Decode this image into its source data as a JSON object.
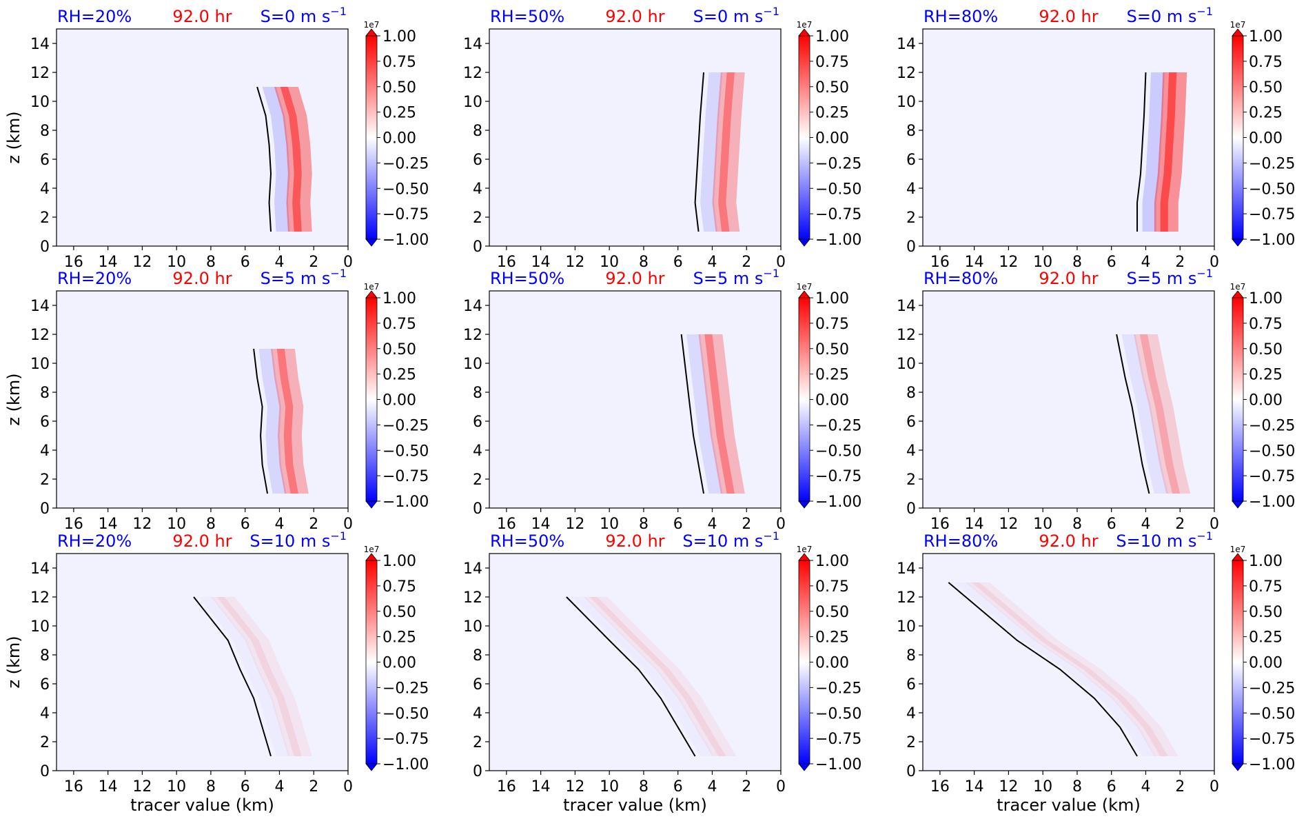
{
  "chart_data": {
    "type": "heatmap",
    "layout": "3x3 grid of contour panels",
    "time_label": "92.0 hr",
    "colors": {
      "rh_label": "#0000ff",
      "time_label": "#ff0000",
      "shear_label": "#0000ff",
      "positive": "#ff0000",
      "negative": "#0000ff",
      "zero": "#f2f2fe",
      "contour": "#000000"
    },
    "shared": {
      "ylabel": "z (km)",
      "xlabel": "tracer value (km)",
      "xlim": [
        17,
        0
      ],
      "ylim": [
        0,
        15
      ],
      "x_ticks": [
        "16",
        "14",
        "12",
        "10",
        "8",
        "6",
        "4",
        "2",
        "0"
      ],
      "y_ticks": [
        "0",
        "2",
        "4",
        "6",
        "8",
        "10",
        "12",
        "14"
      ]
    },
    "colorbar": {
      "exponent_label": "1e7",
      "ticks": [
        "1.00",
        "0.75",
        "0.50",
        "0.25",
        "0.00",
        "−0.25",
        "−0.50",
        "−0.75",
        "−1.00"
      ],
      "range": [
        -1.0,
        1.0
      ],
      "extend": "both",
      "cmap": "bwr"
    },
    "panels": [
      {
        "rh": "RH=20%",
        "time": "92.0 hr",
        "shear": "S=0 m s",
        "shear_exp": "−1",
        "band": [
          {
            "z": 1,
            "x": 3.0
          },
          {
            "z": 3,
            "x": 3.1
          },
          {
            "z": 5,
            "x": 3.0
          },
          {
            "z": 7,
            "x": 3.1
          },
          {
            "z": 9,
            "x": 3.3
          },
          {
            "z": 11,
            "x": 3.8
          }
        ],
        "strength": 0.8
      },
      {
        "rh": "RH=50%",
        "time": "92.0 hr",
        "shear": "S=0 m s",
        "shear_exp": "−1",
        "band": [
          {
            "z": 1,
            "x": 3.3
          },
          {
            "z": 3,
            "x": 3.5
          },
          {
            "z": 5,
            "x": 3.4
          },
          {
            "z": 7,
            "x": 3.3
          },
          {
            "z": 9,
            "x": 3.2
          },
          {
            "z": 12,
            "x": 3.0
          }
        ],
        "strength": 0.6
      },
      {
        "rh": "RH=80%",
        "time": "92.0 hr",
        "shear": "S=0 m s",
        "shear_exp": "−1",
        "band": [
          {
            "z": 1,
            "x": 3.0
          },
          {
            "z": 3,
            "x": 3.0
          },
          {
            "z": 5,
            "x": 2.8
          },
          {
            "z": 7,
            "x": 2.7
          },
          {
            "z": 9,
            "x": 2.6
          },
          {
            "z": 12,
            "x": 2.5
          }
        ],
        "strength": 0.9
      },
      {
        "rh": "RH=20%",
        "time": "92.0 hr",
        "shear": "S=5 m s",
        "shear_exp": "−1",
        "band": [
          {
            "z": 1,
            "x": 3.2
          },
          {
            "z": 3,
            "x": 3.5
          },
          {
            "z": 5,
            "x": 3.6
          },
          {
            "z": 7,
            "x": 3.5
          },
          {
            "z": 9,
            "x": 3.8
          },
          {
            "z": 11,
            "x": 4.0
          }
        ],
        "strength": 0.6
      },
      {
        "rh": "RH=50%",
        "time": "92.0 hr",
        "shear": "S=5 m s",
        "shear_exp": "−1",
        "band": [
          {
            "z": 1,
            "x": 3.0
          },
          {
            "z": 3,
            "x": 3.3
          },
          {
            "z": 5,
            "x": 3.6
          },
          {
            "z": 7,
            "x": 3.8
          },
          {
            "z": 9,
            "x": 4.0
          },
          {
            "z": 12,
            "x": 4.3
          }
        ],
        "strength": 0.55
      },
      {
        "rh": "RH=80%",
        "time": "92.0 hr",
        "shear": "S=5 m s",
        "shear_exp": "−1",
        "band": [
          {
            "z": 1,
            "x": 2.3
          },
          {
            "z": 3,
            "x": 2.7
          },
          {
            "z": 5,
            "x": 3.0
          },
          {
            "z": 7,
            "x": 3.3
          },
          {
            "z": 9,
            "x": 3.7
          },
          {
            "z": 12,
            "x": 4.2
          }
        ],
        "strength": 0.35
      },
      {
        "rh": "RH=20%",
        "time": "92.0 hr",
        "shear": "S=10 m s",
        "shear_exp": "−1",
        "band": [
          {
            "z": 1,
            "x": 3.0
          },
          {
            "z": 3,
            "x": 3.5
          },
          {
            "z": 5,
            "x": 4.0
          },
          {
            "z": 7,
            "x": 4.8
          },
          {
            "z": 9,
            "x": 5.5
          },
          {
            "z": 12,
            "x": 7.5
          }
        ],
        "strength": 0.12
      },
      {
        "rh": "RH=50%",
        "time": "92.0 hr",
        "shear": "S=10 m s",
        "shear_exp": "−1",
        "band": [
          {
            "z": 1,
            "x": 3.5
          },
          {
            "z": 3,
            "x": 4.5
          },
          {
            "z": 5,
            "x": 5.5
          },
          {
            "z": 7,
            "x": 6.8
          },
          {
            "z": 9,
            "x": 8.5
          },
          {
            "z": 12,
            "x": 11
          }
        ],
        "strength": 0.12
      },
      {
        "rh": "RH=80%",
        "time": "92.0 hr",
        "shear": "S=10 m s",
        "shear_exp": "−1",
        "band": [
          {
            "z": 1,
            "x": 3.0
          },
          {
            "z": 3,
            "x": 4.0
          },
          {
            "z": 5,
            "x": 5.5
          },
          {
            "z": 7,
            "x": 7.5
          },
          {
            "z": 9,
            "x": 10
          },
          {
            "z": 13,
            "x": 14
          }
        ],
        "strength": 0.12
      }
    ]
  }
}
